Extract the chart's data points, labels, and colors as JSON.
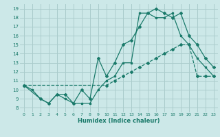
{
  "xlabel": "Humidex (Indice chaleur)",
  "bg_color": "#cce8e8",
  "grid_color": "#aacccc",
  "line_color": "#1a7a6a",
  "xlim": [
    -0.5,
    23.5
  ],
  "ylim": [
    7.5,
    19.5
  ],
  "xticks": [
    0,
    1,
    2,
    3,
    4,
    5,
    6,
    7,
    8,
    9,
    10,
    11,
    12,
    13,
    14,
    15,
    16,
    17,
    18,
    19,
    20,
    21,
    22,
    23
  ],
  "yticks": [
    8,
    9,
    10,
    11,
    12,
    13,
    14,
    15,
    16,
    17,
    18,
    19
  ],
  "line1_x": [
    0,
    1,
    2,
    3,
    4,
    5,
    6,
    7,
    8,
    9,
    10,
    11,
    12,
    13,
    14,
    15,
    16,
    17,
    18,
    19,
    20,
    21,
    22,
    23
  ],
  "line1_y": [
    10.5,
    10.0,
    9.0,
    8.5,
    9.5,
    9.0,
    8.5,
    8.5,
    8.5,
    10.0,
    11.0,
    11.5,
    13.0,
    13.0,
    18.5,
    18.5,
    18.0,
    18.0,
    18.5,
    16.0,
    15.0,
    13.5,
    12.5,
    11.5
  ],
  "line2_x": [
    0,
    2,
    3,
    4,
    5,
    6,
    7,
    8,
    9,
    10,
    11,
    12,
    13,
    14,
    15,
    16,
    17,
    18,
    19,
    20,
    21,
    22,
    23
  ],
  "line2_y": [
    10.5,
    9.0,
    8.5,
    9.5,
    9.5,
    8.5,
    10.0,
    9.0,
    13.5,
    11.5,
    13.0,
    15.0,
    15.5,
    17.0,
    18.5,
    19.0,
    18.5,
    18.0,
    18.5,
    16.0,
    15.0,
    13.5,
    12.5
  ],
  "line3_x": [
    0,
    10,
    11,
    12,
    13,
    14,
    15,
    16,
    17,
    18,
    19,
    20,
    21,
    22,
    23
  ],
  "line3_y": [
    10.5,
    10.5,
    11.0,
    11.5,
    12.0,
    12.5,
    13.0,
    13.5,
    14.0,
    14.5,
    15.0,
    15.0,
    11.5,
    11.5,
    11.5
  ]
}
